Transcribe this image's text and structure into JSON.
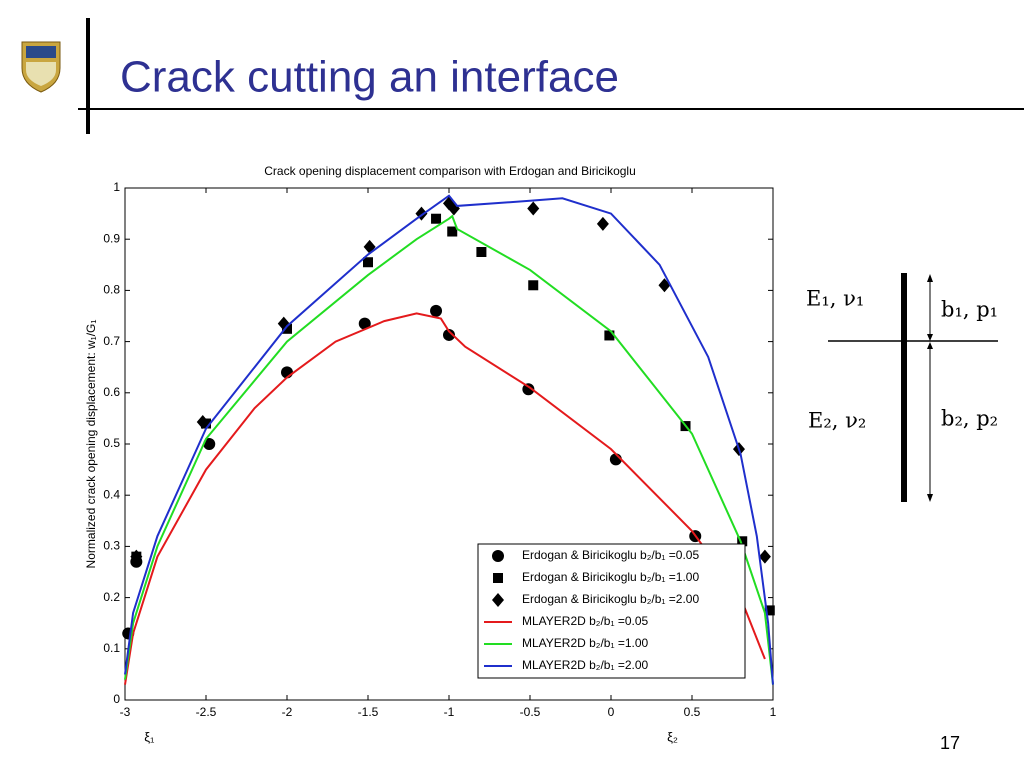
{
  "slide": {
    "title": "Crack cutting an interface",
    "page_number": "17"
  },
  "chart_data": {
    "type": "line",
    "title": "Crack opening displacement comparison with Erdogan and Biricikoglu",
    "ylabel": "Normalized crack opening displacement: w₁/G₁",
    "x_annotations": [
      {
        "text": "ξ₁",
        "x": -2.85
      },
      {
        "text": "ξ₂",
        "x": 0.38
      }
    ],
    "xlim": [
      -3,
      1
    ],
    "xticks": [
      -3,
      -2.5,
      -2,
      -1.5,
      -1,
      -0.5,
      0,
      0.5,
      1
    ],
    "ylim": [
      0,
      1
    ],
    "yticks": [
      0,
      0.1,
      0.2,
      0.3,
      0.4,
      0.5,
      0.6,
      0.7,
      0.8,
      0.9,
      1
    ],
    "legend": "lower right",
    "series": [
      {
        "name": "Erdogan & Biricikoglu b₂/b₁ =0.05",
        "color": "#000000",
        "style": "marker",
        "marker": "circle",
        "x": [
          -2.98,
          -2.93,
          -2.48,
          -2.0,
          -1.52,
          -1.08,
          -1.0,
          -0.51,
          0.03,
          0.52
        ],
        "values": [
          0.13,
          0.27,
          0.5,
          0.64,
          0.735,
          0.76,
          0.713,
          0.607,
          0.47,
          0.32
        ]
      },
      {
        "name": "Erdogan & Biricikoglu b₂/b₁ =1.00",
        "color": "#000000",
        "style": "marker",
        "marker": "square",
        "x": [
          -2.93,
          -2.5,
          -2.0,
          -1.5,
          -1.08,
          -0.98,
          -0.8,
          -0.48,
          -0.01,
          0.46,
          0.81,
          0.98
        ],
        "values": [
          0.28,
          0.54,
          0.725,
          0.855,
          0.94,
          0.915,
          0.875,
          0.81,
          0.712,
          0.535,
          0.31,
          0.175
        ]
      },
      {
        "name": "Erdogan & Biricikoglu b₂/b₁ =2.00",
        "color": "#000000",
        "style": "marker",
        "marker": "diamond",
        "x": [
          -2.93,
          -2.52,
          -2.02,
          -1.49,
          -1.17,
          -1.0,
          -0.97,
          -0.48,
          -0.05,
          0.33,
          0.79,
          0.95
        ],
        "values": [
          0.28,
          0.543,
          0.735,
          0.885,
          0.95,
          0.97,
          0.96,
          0.96,
          0.93,
          0.81,
          0.49,
          0.28
        ]
      },
      {
        "name": "MLAYER2D b₂/b₁ =0.05",
        "color": "#e41a1c",
        "style": "line",
        "x": [
          -3,
          -2.95,
          -2.8,
          -2.5,
          -2.2,
          -2,
          -1.7,
          -1.4,
          -1.2,
          -1.05,
          -1.0,
          -0.9,
          -0.5,
          0,
          0.5,
          0.8,
          0.95
        ],
        "values": [
          0.03,
          0.13,
          0.28,
          0.45,
          0.57,
          0.63,
          0.7,
          0.74,
          0.755,
          0.745,
          0.72,
          0.69,
          0.61,
          0.49,
          0.33,
          0.2,
          0.08
        ]
      },
      {
        "name": "MLAYER2D b₂/b₁ =1.00",
        "color": "#22dd22",
        "style": "line",
        "x": [
          -3,
          -2.95,
          -2.8,
          -2.5,
          -2,
          -1.5,
          -1.2,
          -1.0,
          -0.98,
          -0.95,
          -0.5,
          0,
          0.5,
          0.8,
          0.95,
          1.0
        ],
        "values": [
          0.04,
          0.15,
          0.3,
          0.51,
          0.7,
          0.83,
          0.9,
          0.94,
          0.945,
          0.92,
          0.84,
          0.72,
          0.52,
          0.31,
          0.17,
          0.03
        ]
      },
      {
        "name": "MLAYER2D b₂/b₁ =2.00",
        "color": "#1f2fcc",
        "style": "line",
        "x": [
          -3,
          -2.95,
          -2.8,
          -2.5,
          -2,
          -1.5,
          -1.2,
          -1.0,
          -0.95,
          -0.5,
          -0.3,
          0,
          0.3,
          0.6,
          0.8,
          0.9,
          0.97,
          1.0
        ],
        "values": [
          0.05,
          0.17,
          0.32,
          0.53,
          0.73,
          0.87,
          0.94,
          0.985,
          0.965,
          0.975,
          0.98,
          0.95,
          0.85,
          0.67,
          0.48,
          0.32,
          0.15,
          0.03
        ]
      }
    ]
  },
  "diagram": {
    "top_material": "E₁, ν₁",
    "top_layer": "b₁, p₁",
    "bottom_material": "E₂, ν₂",
    "bottom_layer": "b₂, p₂"
  }
}
